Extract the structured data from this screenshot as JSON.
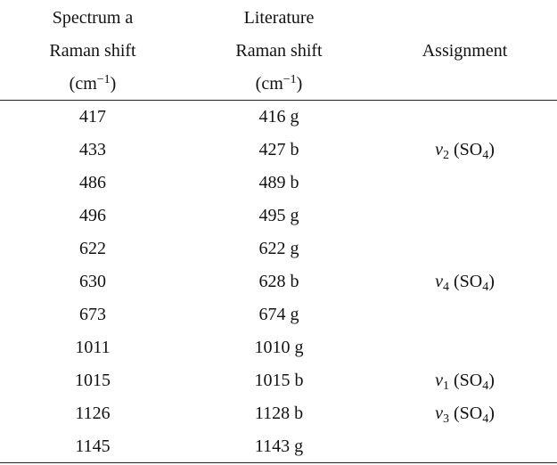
{
  "headers": {
    "col1": [
      "Spectrum a",
      "Raman shift"
    ],
    "col2": [
      "Literature",
      "Raman shift"
    ],
    "col3": "Assignment",
    "unit_base": "(cm",
    "unit_exp": "−1",
    "unit_close": ")"
  },
  "rows": [
    {
      "spectrum": "417",
      "literature": "416 g",
      "assignment": ""
    },
    {
      "spectrum": "433",
      "literature": "427 b",
      "assignment": "ν2 (SO4)"
    },
    {
      "spectrum": "486",
      "literature": "489 b",
      "assignment": ""
    },
    {
      "spectrum": "496",
      "literature": "495 g",
      "assignment": ""
    },
    {
      "spectrum": "622",
      "literature": "622 g",
      "assignment": ""
    },
    {
      "spectrum": "630",
      "literature": "628 b",
      "assignment": "ν4 (SO4)"
    },
    {
      "spectrum": "673",
      "literature": "674 g",
      "assignment": ""
    },
    {
      "spectrum": "1011",
      "literature": "1010 g",
      "assignment": ""
    },
    {
      "spectrum": "1015",
      "literature": "1015 b",
      "assignment": "ν1 (SO4)"
    },
    {
      "spectrum": "1126",
      "literature": "1128 b",
      "assignment": "ν3 (SO4)"
    },
    {
      "spectrum": "1145",
      "literature": "1143 g",
      "assignment": ""
    }
  ]
}
